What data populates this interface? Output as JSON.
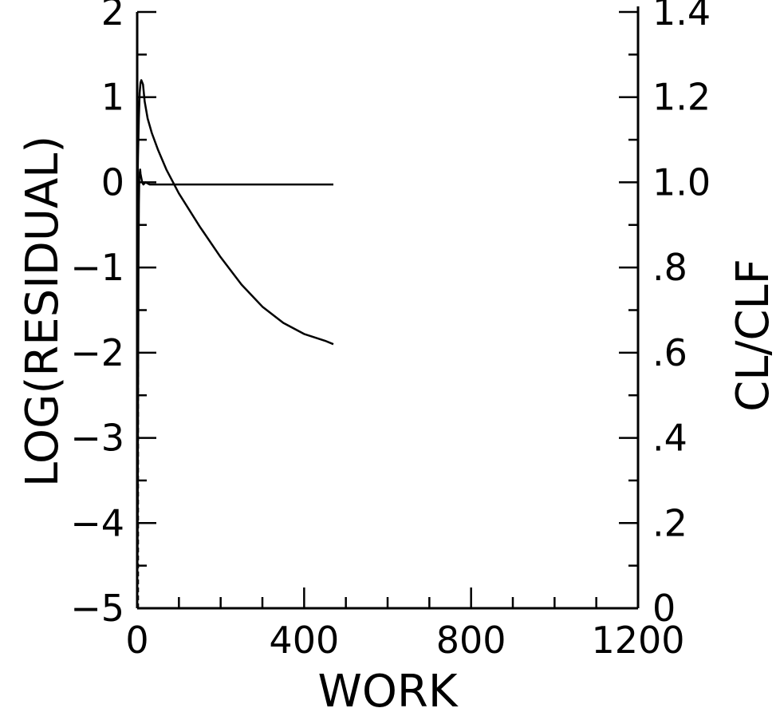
{
  "chart_data": {
    "type": "line",
    "xlabel": "WORK",
    "ylabel_left": "LOG(RESIDUAL)",
    "ylabel_right": "CL/CLF",
    "xlim": [
      0,
      1200
    ],
    "ylim_left": [
      -5,
      2
    ],
    "ylim_right": [
      0,
      1.4
    ],
    "x_ticks": [
      "0",
      "400",
      "800",
      "1200"
    ],
    "y_ticks_left": [
      "2",
      "1",
      "0",
      "-1",
      "-2",
      "-3",
      "-4",
      "-5"
    ],
    "y_ticks_right": [
      "1.4",
      "1.2",
      "1.0",
      ".8",
      ".6",
      ".4",
      ".2",
      "0"
    ],
    "grid": false,
    "series": [
      {
        "axis": "left",
        "x": [
          0,
          2,
          4,
          6,
          8,
          10,
          14,
          18,
          25,
          35,
          50,
          70,
          100,
          150,
          200,
          250,
          300,
          350,
          400,
          450,
          470
        ],
        "y": [
          -0.3,
          0.3,
          0.75,
          1.05,
          1.17,
          1.2,
          1.15,
          0.95,
          0.75,
          0.58,
          0.38,
          0.15,
          -0.13,
          -0.52,
          -0.88,
          -1.2,
          -1.46,
          -1.65,
          -1.78,
          -1.86,
          -1.9
        ]
      },
      {
        "axis": "right",
        "x": [
          0,
          1,
          2,
          3,
          4,
          5,
          6,
          7,
          8,
          10,
          12,
          15,
          20,
          30,
          50,
          100,
          200,
          300,
          400,
          470
        ],
        "y": [
          0,
          0.15,
          0.45,
          0.8,
          0.95,
          1.01,
          1.02,
          1.03,
          1.02,
          1.01,
          1.0,
          0.995,
          1.0,
          0.995,
          0.995,
          0.995,
          0.995,
          0.995,
          0.995,
          0.995
        ]
      }
    ]
  }
}
